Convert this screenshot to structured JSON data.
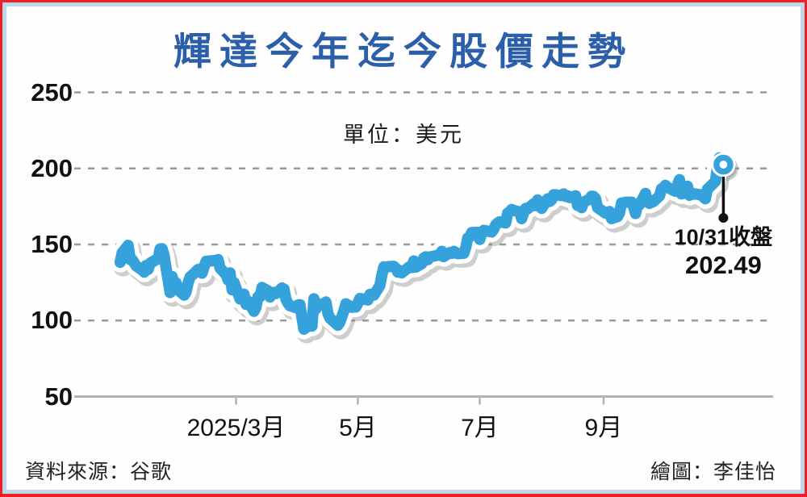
{
  "frame": {
    "outer_border_color": "#ee2027",
    "inner_border_color": "#bcd6ea",
    "background_color": "#fefefe"
  },
  "header": {
    "title": "輝達今年迄今股價走勢",
    "title_color": "#2c5fa9"
  },
  "footer": {
    "source": "資料來源：谷歌",
    "credit": "繪圖：李佳怡"
  },
  "chart_data": {
    "type": "line",
    "title": "輝達今年迄今股價走勢",
    "unit_label": "單位：美元",
    "ylabel": "",
    "xlabel": "",
    "ylim": [
      50,
      250
    ],
    "yticks": [
      250,
      200,
      150,
      100,
      50
    ],
    "xticks": [
      {
        "label": "2025/3月",
        "date": "3/1"
      },
      {
        "label": "5月",
        "date": "5/1"
      },
      {
        "label": "7月",
        "date": "7/1"
      },
      {
        "label": "9月",
        "date": "9/1"
      }
    ],
    "grid": "dashed horizontal",
    "legend": "none",
    "annotation": {
      "date_label": "10/31收盤",
      "price_label": "202.49",
      "date": "10/31",
      "price": 202.49
    },
    "series": [
      {
        "name": "輝達股價(美元)",
        "color": "#36a2dc",
        "casing_color": "#ffffff",
        "shadow_color": "rgba(130,130,130,0.38)",
        "points": [
          [
            "1/2",
            138.3
          ],
          [
            "1/3",
            144.5
          ],
          [
            "1/6",
            149.4
          ],
          [
            "1/7",
            140.1
          ],
          [
            "1/8",
            140.1
          ],
          [
            "1/10",
            135.9
          ],
          [
            "1/13",
            133.2
          ],
          [
            "1/14",
            131.8
          ],
          [
            "1/15",
            136.2
          ],
          [
            "1/16",
            133.6
          ],
          [
            "1/17",
            137.7
          ],
          [
            "1/21",
            140.8
          ],
          [
            "1/22",
            147.1
          ],
          [
            "1/23",
            147.2
          ],
          [
            "1/24",
            142.6
          ],
          [
            "1/27",
            118.4
          ],
          [
            "1/28",
            128.9
          ],
          [
            "1/29",
            123.7
          ],
          [
            "1/30",
            124.7
          ],
          [
            "1/31",
            120.1
          ],
          [
            "2/3",
            116.7
          ],
          [
            "2/4",
            118.7
          ],
          [
            "2/5",
            124.8
          ],
          [
            "2/6",
            128.7
          ],
          [
            "2/7",
            129.8
          ],
          [
            "2/10",
            133.6
          ],
          [
            "2/11",
            132.8
          ],
          [
            "2/12",
            131.1
          ],
          [
            "2/13",
            135.3
          ],
          [
            "2/14",
            138.9
          ],
          [
            "2/18",
            139.4
          ],
          [
            "2/19",
            139.2
          ],
          [
            "2/20",
            140.1
          ],
          [
            "2/21",
            134.4
          ],
          [
            "2/24",
            130.3
          ],
          [
            "2/25",
            126.6
          ],
          [
            "2/26",
            131.3
          ],
          [
            "2/27",
            120.2
          ],
          [
            "2/28",
            124.9
          ],
          [
            "3/3",
            114.1
          ],
          [
            "3/4",
            116.0
          ],
          [
            "3/5",
            117.3
          ],
          [
            "3/6",
            110.6
          ],
          [
            "3/7",
            112.7
          ],
          [
            "3/10",
            106.0
          ],
          [
            "3/11",
            108.8
          ],
          [
            "3/12",
            115.7
          ],
          [
            "3/13",
            115.6
          ],
          [
            "3/14",
            121.7
          ],
          [
            "3/17",
            119.5
          ],
          [
            "3/18",
            115.4
          ],
          [
            "3/19",
            117.5
          ],
          [
            "3/20",
            118.5
          ],
          [
            "3/21",
            117.7
          ],
          [
            "3/24",
            121.4
          ],
          [
            "3/25",
            120.7
          ],
          [
            "3/26",
            113.8
          ],
          [
            "3/27",
            111.4
          ],
          [
            "3/28",
            109.7
          ],
          [
            "3/31",
            108.4
          ],
          [
            "4/1",
            110.2
          ],
          [
            "4/2",
            110.4
          ],
          [
            "4/3",
            101.8
          ],
          [
            "4/4",
            94.3
          ],
          [
            "4/7",
            97.6
          ],
          [
            "4/8",
            96.3
          ],
          [
            "4/9",
            114.3
          ],
          [
            "4/10",
            107.6
          ],
          [
            "4/11",
            110.9
          ],
          [
            "4/14",
            110.7
          ],
          [
            "4/15",
            112.2
          ],
          [
            "4/16",
            104.5
          ],
          [
            "4/17",
            101.5
          ],
          [
            "4/21",
            96.9
          ],
          [
            "4/22",
            98.9
          ],
          [
            "4/23",
            102.7
          ],
          [
            "4/24",
            106.4
          ],
          [
            "4/25",
            111.0
          ],
          [
            "4/28",
            108.7
          ],
          [
            "4/29",
            109.0
          ],
          [
            "4/30",
            108.9
          ],
          [
            "5/1",
            111.6
          ],
          [
            "5/2",
            114.5
          ],
          [
            "5/5",
            113.8
          ],
          [
            "5/6",
            113.5
          ],
          [
            "5/7",
            117.1
          ],
          [
            "5/8",
            117.4
          ],
          [
            "5/9",
            116.7
          ],
          [
            "5/12",
            123.0
          ],
          [
            "5/13",
            129.9
          ],
          [
            "5/14",
            135.3
          ],
          [
            "5/15",
            134.8
          ],
          [
            "5/16",
            135.4
          ],
          [
            "5/19",
            135.6
          ],
          [
            "5/20",
            134.4
          ],
          [
            "5/21",
            131.8
          ],
          [
            "5/22",
            132.8
          ],
          [
            "5/23",
            131.3
          ],
          [
            "5/27",
            135.5
          ],
          [
            "5/28",
            134.8
          ],
          [
            "5/29",
            139.2
          ],
          [
            "5/30",
            135.1
          ],
          [
            "6/2",
            137.4
          ],
          [
            "6/3",
            141.2
          ],
          [
            "6/4",
            141.9
          ],
          [
            "6/5",
            140.0
          ],
          [
            "6/6",
            141.7
          ],
          [
            "6/9",
            142.6
          ],
          [
            "6/10",
            143.0
          ],
          [
            "6/11",
            142.8
          ],
          [
            "6/12",
            145.5
          ],
          [
            "6/13",
            142.0
          ],
          [
            "6/16",
            144.7
          ],
          [
            "6/17",
            144.2
          ],
          [
            "6/18",
            145.5
          ],
          [
            "6/20",
            143.9
          ],
          [
            "6/23",
            144.2
          ],
          [
            "6/24",
            147.9
          ],
          [
            "6/25",
            154.3
          ],
          [
            "6/26",
            155.0
          ],
          [
            "6/27",
            157.8
          ],
          [
            "6/30",
            158.0
          ],
          [
            "7/1",
            153.3
          ],
          [
            "7/2",
            157.2
          ],
          [
            "7/3",
            159.3
          ],
          [
            "7/7",
            158.2
          ],
          [
            "7/8",
            160.0
          ],
          [
            "7/9",
            162.9
          ],
          [
            "7/10",
            164.1
          ],
          [
            "7/11",
            164.9
          ],
          [
            "7/14",
            164.1
          ],
          [
            "7/15",
            170.7
          ],
          [
            "7/16",
            171.4
          ],
          [
            "7/17",
            173.0
          ],
          [
            "7/18",
            172.4
          ],
          [
            "7/21",
            171.4
          ],
          [
            "7/22",
            167.0
          ],
          [
            "7/23",
            170.8
          ],
          [
            "7/24",
            173.7
          ],
          [
            "7/25",
            173.5
          ],
          [
            "7/28",
            176.8
          ],
          [
            "7/29",
            175.5
          ],
          [
            "7/30",
            179.3
          ],
          [
            "7/31",
            177.9
          ],
          [
            "8/1",
            173.7
          ],
          [
            "8/4",
            180.0
          ],
          [
            "8/5",
            178.3
          ],
          [
            "8/6",
            179.4
          ],
          [
            "8/7",
            182.7
          ],
          [
            "8/8",
            182.7
          ],
          [
            "8/11",
            182.1
          ],
          [
            "8/12",
            183.2
          ],
          [
            "8/13",
            181.6
          ],
          [
            "8/14",
            182.0
          ],
          [
            "8/15",
            180.8
          ],
          [
            "8/18",
            182.0
          ],
          [
            "8/19",
            175.6
          ],
          [
            "8/20",
            175.4
          ],
          [
            "8/21",
            174.2
          ],
          [
            "8/22",
            177.9
          ],
          [
            "8/25",
            179.8
          ],
          [
            "8/26",
            181.8
          ],
          [
            "8/27",
            181.6
          ],
          [
            "8/28",
            180.2
          ],
          [
            "8/29",
            174.2
          ],
          [
            "9/2",
            170.6
          ],
          [
            "9/3",
            170.8
          ],
          [
            "9/4",
            171.7
          ],
          [
            "9/5",
            167.0
          ],
          [
            "9/8",
            168.3
          ],
          [
            "9/9",
            170.8
          ],
          [
            "9/10",
            177.3
          ],
          [
            "9/11",
            177.2
          ],
          [
            "9/12",
            177.8
          ],
          [
            "9/15",
            177.8
          ],
          [
            "9/16",
            174.9
          ],
          [
            "9/17",
            170.3
          ],
          [
            "9/18",
            176.2
          ],
          [
            "9/19",
            176.1
          ],
          [
            "9/22",
            183.6
          ],
          [
            "9/23",
            178.4
          ],
          [
            "9/24",
            177.0
          ],
          [
            "9/25",
            177.7
          ],
          [
            "9/26",
            178.2
          ],
          [
            "9/29",
            181.9
          ],
          [
            "9/30",
            186.6
          ],
          [
            "10/1",
            187.0
          ],
          [
            "10/2",
            188.9
          ],
          [
            "10/3",
            187.6
          ],
          [
            "10/6",
            185.5
          ],
          [
            "10/7",
            185.0
          ],
          [
            "10/8",
            189.1
          ],
          [
            "10/9",
            192.6
          ],
          [
            "10/10",
            183.2
          ],
          [
            "10/13",
            188.3
          ],
          [
            "10/14",
            182.3
          ],
          [
            "10/15",
            183.9
          ],
          [
            "10/16",
            183.0
          ],
          [
            "10/17",
            183.2
          ],
          [
            "10/20",
            182.6
          ],
          [
            "10/21",
            181.2
          ],
          [
            "10/22",
            180.0
          ],
          [
            "10/23",
            186.3
          ],
          [
            "10/24",
            187.6
          ],
          [
            "10/27",
            191.5
          ],
          [
            "10/28",
            201.0
          ],
          [
            "10/29",
            207.0
          ],
          [
            "10/30",
            202.9
          ],
          [
            "10/31",
            202.49
          ]
        ]
      }
    ]
  }
}
